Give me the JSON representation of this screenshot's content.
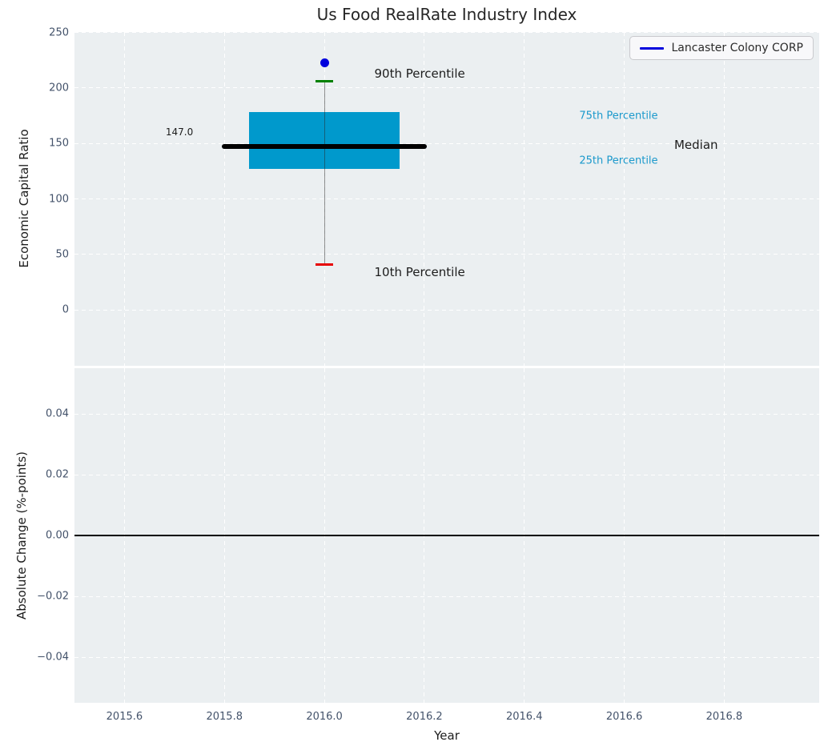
{
  "legend": {
    "label": "Lancaster Colony CORP"
  },
  "chart_data": {
    "type": "boxplot",
    "title": "Us Food RealRate Industry Index",
    "xlabel": "Year",
    "xlim": [
      2015.5,
      2016.99
    ],
    "grid": true,
    "legend_position": "upper right",
    "xticks": [
      {
        "v": 2015.6,
        "label": "2015.6"
      },
      {
        "v": 2015.8,
        "label": "2015.8"
      },
      {
        "v": 2016.0,
        "label": "2016.0"
      },
      {
        "v": 2016.2,
        "label": "2016.2"
      },
      {
        "v": 2016.4,
        "label": "2016.4"
      },
      {
        "v": 2016.6,
        "label": "2016.6"
      },
      {
        "v": 2016.8,
        "label": "2016.8"
      }
    ],
    "panels": {
      "top": {
        "ylabel": "Economic Capital Ratio",
        "ylim": [
          -50.5,
          250.5
        ],
        "yticks": [
          {
            "v": 250,
            "label": "250"
          },
          {
            "v": 200,
            "label": "200"
          },
          {
            "v": 150,
            "label": "150"
          },
          {
            "v": 100,
            "label": "100"
          },
          {
            "v": 50,
            "label": "50"
          },
          {
            "v": 0,
            "label": "0"
          }
        ],
        "box": {
          "x": 2016.0,
          "p10": 41,
          "p25": 127,
          "median": 147.0,
          "p75": 178,
          "p90": 206,
          "box_halfwidth": 0.15,
          "median_halfwidth": 0.205,
          "cap_halfwidth": 0.017
        },
        "company_point": {
          "name": "Lancaster Colony CORP",
          "x": 2016.0,
          "y": 223
        },
        "annotations": [
          {
            "name": "label-90th-percentile",
            "text": "90th Percentile",
            "x": 2016.1,
            "y": 213,
            "ha": "left",
            "size": 15,
            "color": "#1c1c1c"
          },
          {
            "name": "label-10th-percentile",
            "text": "10th Percentile",
            "x": 2016.1,
            "y": 34,
            "ha": "left",
            "size": 15,
            "color": "#1c1c1c"
          },
          {
            "name": "label-median",
            "text": "Median",
            "x": 2016.7,
            "y": 149,
            "ha": "left",
            "size": 15,
            "color": "#1c1c1c"
          },
          {
            "name": "label-75th-percentile",
            "text": "75th Percentile",
            "x": 2016.51,
            "y": 175,
            "ha": "left",
            "size": 13,
            "color": "#1b99cc"
          },
          {
            "name": "label-25th-percentile",
            "text": "25th Percentile",
            "x": 2016.51,
            "y": 134,
            "ha": "left",
            "size": 13,
            "color": "#1b99cc"
          },
          {
            "name": "label-median-value",
            "text": "147.0",
            "x": 2015.71,
            "y": 160,
            "ha": "center",
            "size": 12,
            "color": "#1c1c1c"
          }
        ]
      },
      "bottom": {
        "ylabel": "Absolute Change (%-points)",
        "ylim": [
          -0.055,
          0.055
        ],
        "yticks": [
          {
            "v": 0.04,
            "label": "0.04"
          },
          {
            "v": 0.02,
            "label": "0.02"
          },
          {
            "v": 0.0,
            "label": "0.00"
          },
          {
            "v": -0.02,
            "label": "−0.02"
          },
          {
            "v": -0.04,
            "label": "−0.04"
          }
        ],
        "zero_line": 0.0
      }
    },
    "colors": {
      "box_fill": "#0099cc",
      "median_line": "#000000",
      "whisker": "rgba(40,40,40,0.5)",
      "cap_upper": "#008000",
      "cap_lower": "#e60000",
      "company_point": "#0000dd",
      "legend_line": "#0000dd",
      "axes_background": "#ebeff1",
      "gridline": "#ffffff",
      "tick_label": "#43526a",
      "text": "#1c1c1c",
      "percentile_label": "#1b99cc"
    }
  }
}
